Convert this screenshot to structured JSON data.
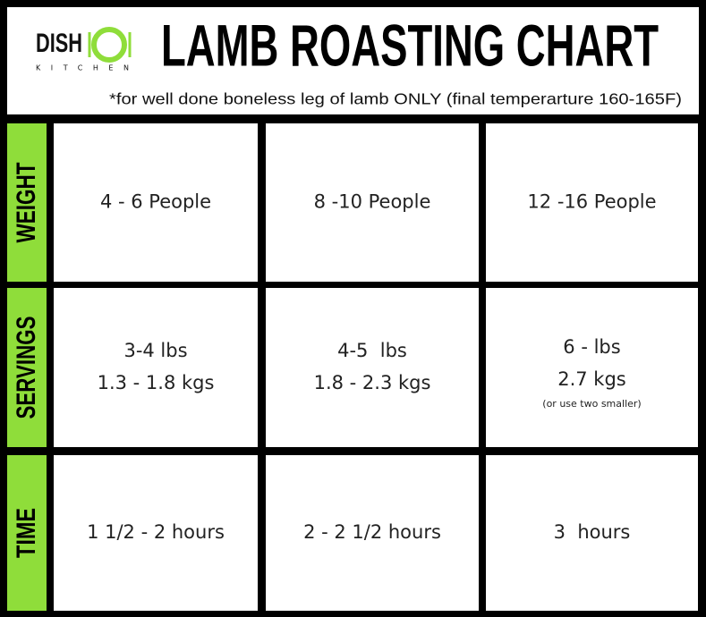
{
  "header": {
    "logo": {
      "name": "DISH",
      "tagline": "KITCHEN"
    },
    "title": "LAMB ROASTING CHART",
    "subtitle": "*for well done boneless leg of lamb ONLY (final temperarture 160-165F)"
  },
  "table": {
    "rows": [
      {
        "label": "WEIGHT",
        "cells": [
          {
            "lines": [
              "4 - 6 People"
            ]
          },
          {
            "lines": [
              "8 -10 People"
            ]
          },
          {
            "lines": [
              "12 -16 People"
            ]
          }
        ]
      },
      {
        "label": "SERVINGS",
        "cells": [
          {
            "lines": [
              "3-4 lbs",
              "1.3 - 1.8 kgs"
            ]
          },
          {
            "lines": [
              "4-5  lbs",
              "1.8 - 2.3 kgs"
            ]
          },
          {
            "lines": [
              "6 - lbs",
              "2.7 kgs"
            ],
            "note": "(or use two smaller)"
          }
        ]
      },
      {
        "label": "TIME",
        "cells": [
          {
            "lines": [
              "1 1/2 - 2 hours"
            ]
          },
          {
            "lines": [
              "2 - 2 1/2 hours"
            ]
          },
          {
            "lines": [
              "3  hours"
            ]
          }
        ]
      }
    ]
  }
}
